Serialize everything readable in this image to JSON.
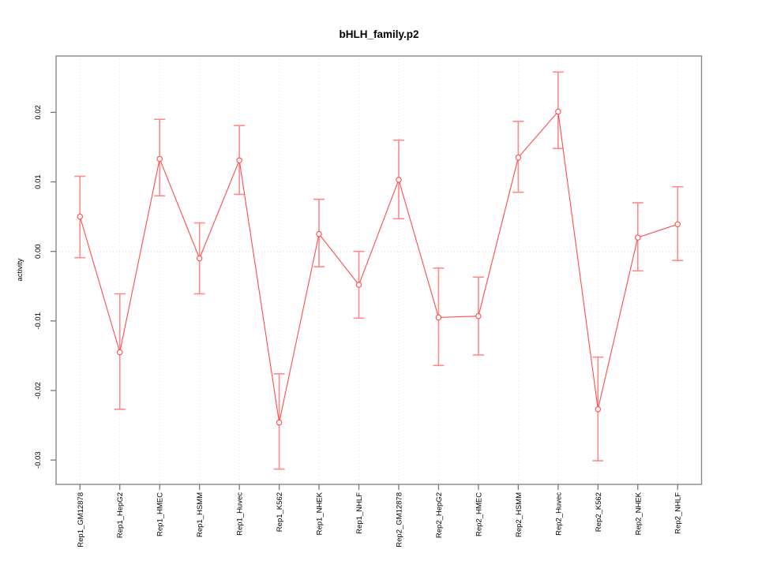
{
  "header": {
    "title": "bHLH_family.p2"
  },
  "chart_data": {
    "type": "line",
    "title": "bHLH_family.p2",
    "xlabel": "",
    "ylabel": "activity",
    "legend_position": "none",
    "grid": "vertical dotted gridline at each category; dotted horizontal line at y=0",
    "marker": "open-circle",
    "error_bars": true,
    "categories": [
      "Rep1_GM12878",
      "Rep1_HepG2",
      "Rep1_HMEC",
      "Rep1_HSMM",
      "Rep1_Huvec",
      "Rep1_K562",
      "Rep1_NHEK",
      "Rep1_NHLF",
      "Rep2_GM12878",
      "Rep2_HepG2",
      "Rep2_HMEC",
      "Rep2_HSMM",
      "Rep2_Huvec",
      "Rep2_K562",
      "Rep2_NHEK",
      "Rep2_NHLF"
    ],
    "series": [
      {
        "name": "activity",
        "values": [
          0.005,
          -0.0145,
          0.0133,
          -0.001,
          0.0131,
          -0.0246,
          0.0025,
          -0.0048,
          0.0103,
          -0.0095,
          -0.0093,
          0.0135,
          0.0201,
          -0.0227,
          0.002,
          0.0039
        ],
        "ci_high": [
          0.0108,
          -0.0061,
          0.019,
          0.0041,
          0.0181,
          -0.0176,
          0.0075,
          0.0,
          0.016,
          -0.0024,
          -0.0037,
          0.0187,
          0.0258,
          -0.0152,
          0.007,
          0.0093
        ],
        "ci_low": [
          -0.0009,
          -0.0227,
          0.008,
          -0.0061,
          0.0082,
          -0.0313,
          -0.0022,
          -0.0096,
          0.0047,
          -0.0164,
          -0.0149,
          0.0085,
          0.0148,
          -0.0301,
          -0.0028,
          -0.0013
        ]
      }
    ],
    "ylim": [
      -0.0335,
      0.0281
    ],
    "yticks": [
      -0.03,
      -0.02,
      -0.01,
      0.0,
      0.01,
      0.02
    ],
    "ytick_labels": [
      "-0.03",
      "-0.02",
      "-0.01",
      "0.00",
      "0.01",
      "0.02"
    ],
    "colors": {
      "series": "#ff4d4d",
      "error_bar": "#ff8a8a",
      "grid": "#e2e2e2",
      "zero_line": "#e8d6d6",
      "axis": "#888888",
      "tick": "#777777",
      "marker_fill": "#ffffff"
    }
  }
}
